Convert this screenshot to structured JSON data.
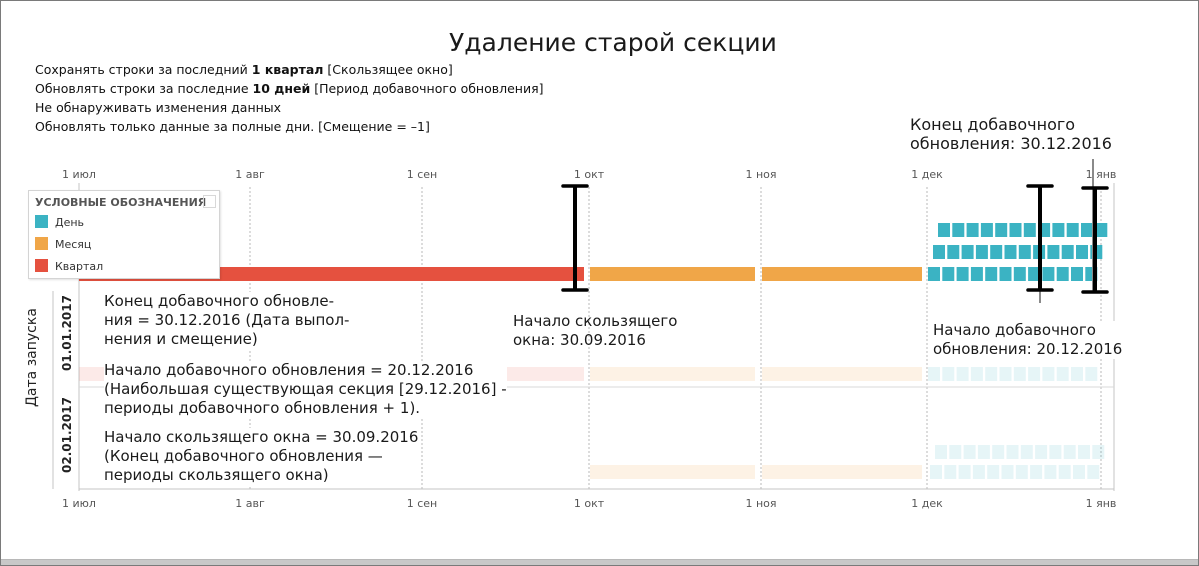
{
  "title": "Удаление старой секции",
  "settings": [
    {
      "pre": "Сохранять строки за последний ",
      "bold": "1 квартал",
      "post": " [Скользящее окно]"
    },
    {
      "pre": "Обновлять строки за последние ",
      "bold": "10 дней",
      "post": " [Период добавочного обновления]"
    },
    {
      "pre": "Не обнаруживать изменения данных",
      "bold": "",
      "post": ""
    },
    {
      "pre": "Обновлять только данные за полные дни. [Смещение = –1]",
      "bold": "",
      "post": ""
    }
  ],
  "axis_ticks": [
    "1 июл",
    "1 авг",
    "1 сен",
    "1 окт",
    "1 ноя",
    "1 дек",
    "1 янв"
  ],
  "legend": {
    "title": "УСЛОВНЫЕ ОБОЗНАЧЕНИЯ",
    "items": [
      {
        "label": "День",
        "color": "#3BB3C3"
      },
      {
        "label": "Месяц",
        "color": "#F0A648"
      },
      {
        "label": "Квартал",
        "color": "#E5513F"
      }
    ]
  },
  "colors": {
    "day": "#3BB3C3",
    "month": "#F0A648",
    "quarter": "#E5513F"
  },
  "y_axis_label": "Дата запуска",
  "row_labels": [
    "01.01.2017",
    "02.01.2017"
  ],
  "annotations": {
    "end_top": [
      "Конец добавочного",
      "обновления: 30.12.2016"
    ],
    "end_formula": [
      "Конец добавочного обновле-",
      "ния = 30.12.2016 (Дата выпол-",
      "нения и смещение)"
    ],
    "window_start": [
      "Начало скользящего",
      "окна: 30.09.2016"
    ],
    "refresh_start": [
      "Начало добавочного",
      "обновления: 20.12.2016"
    ],
    "refresh_formula": [
      "Начало добавочного обновления = 20.12.2016",
      "(Наибольшая существующая секция [29.12.2016] -",
      "периоды добавочного обновления + 1)."
    ],
    "window_formula": [
      "Начало скользящего окна = 30.09.2016",
      "(Конец добавочного обновления —",
      "периоды скользящего окна)"
    ]
  }
}
